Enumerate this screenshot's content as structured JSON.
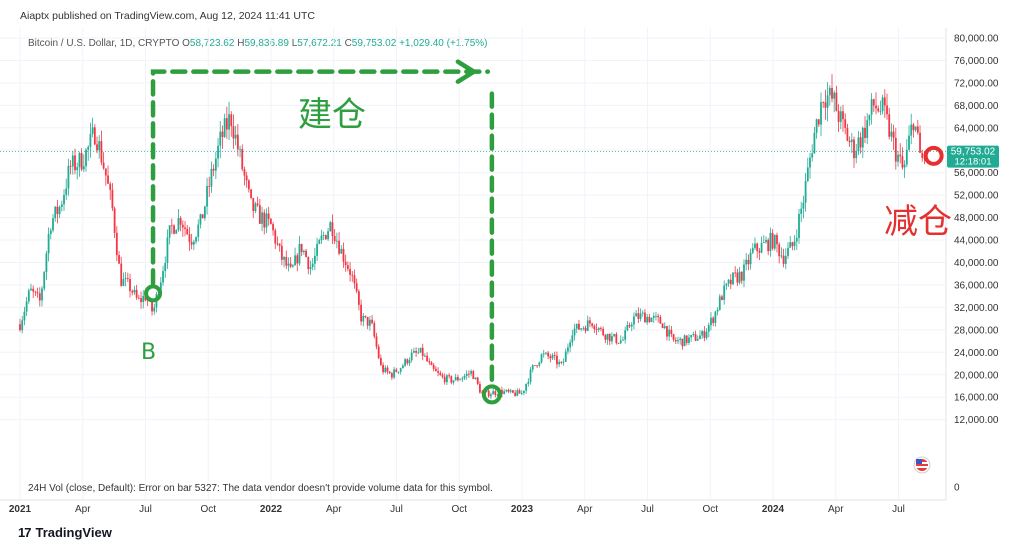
{
  "header": {
    "publisher": "Aiaptx published on TradingView.com, Aug 12, 2024 11:41 UTC"
  },
  "legend": {
    "symbol": "Bitcoin / U.S. Dollar, 1D, CRYPTO",
    "o_label": "O",
    "o_value": "58,723.62",
    "h_label": "H",
    "h_value": "59,836.89",
    "l_label": "L",
    "l_value": "57,672.21",
    "c_label": "C",
    "c_value": "59,753.02",
    "change": "+1,029.40 (+1.75%)"
  },
  "price_badge": {
    "price": "59,753.02",
    "countdown": "12:18:01"
  },
  "volume_note": "24H Vol (close, Default): Error on bar 5327: The data vendor doesn't provide volume data for this symbol.",
  "brand": {
    "logo": "17",
    "name": "TradingView"
  },
  "annotations": {
    "build": "建仓",
    "reduce": "减仓",
    "buy": "B"
  },
  "colors": {
    "up": "#22ab94",
    "down": "#f23645",
    "annotation_green": "#2e9e3e",
    "annotation_red": "#e63030",
    "price_line": "#22ab94",
    "grid": "#f0f3fa"
  },
  "chart_data": {
    "type": "candlestick",
    "title": "Bitcoin / U.S. Dollar, 1D, CRYPTO",
    "ylim": [
      0,
      80000
    ],
    "yticks": [
      "80,000.00",
      "76,000.00",
      "72,000.00",
      "68,000.00",
      "64,000.00",
      "60,000.00",
      "56,000.00",
      "52,000.00",
      "48,000.00",
      "44,000.00",
      "40,000.00",
      "36,000.00",
      "32,000.00",
      "28,000.00",
      "24,000.00",
      "20,000.00",
      "16,000.00",
      "12,000.00",
      "0"
    ],
    "ytick_values": [
      80000,
      76000,
      72000,
      68000,
      64000,
      60000,
      56000,
      52000,
      48000,
      44000,
      40000,
      36000,
      32000,
      28000,
      24000,
      20000,
      16000,
      12000,
      0
    ],
    "xticks": [
      {
        "label": "2021",
        "t": 2021.0,
        "major": true
      },
      {
        "label": "Apr",
        "t": 2021.25
      },
      {
        "label": "Jul",
        "t": 2021.5
      },
      {
        "label": "Oct",
        "t": 2021.75
      },
      {
        "label": "2022",
        "t": 2022.0,
        "major": true
      },
      {
        "label": "Apr",
        "t": 2022.25
      },
      {
        "label": "Jul",
        "t": 2022.5
      },
      {
        "label": "Oct",
        "t": 2022.75
      },
      {
        "label": "2023",
        "t": 2023.0,
        "major": true
      },
      {
        "label": "Apr",
        "t": 2023.25
      },
      {
        "label": "Jul",
        "t": 2023.5
      },
      {
        "label": "Oct",
        "t": 2023.75
      },
      {
        "label": "2024",
        "t": 2024.0,
        "major": true
      },
      {
        "label": "Apr",
        "t": 2024.25
      },
      {
        "label": "Jul",
        "t": 2024.5
      }
    ],
    "xlim": [
      2021.0,
      2024.64
    ],
    "price_series": [
      [
        2021.0,
        29000
      ],
      [
        2021.04,
        35000
      ],
      [
        2021.08,
        33000
      ],
      [
        2021.12,
        47000
      ],
      [
        2021.16,
        50000
      ],
      [
        2021.2,
        57000
      ],
      [
        2021.24,
        58000
      ],
      [
        2021.27,
        60000
      ],
      [
        2021.3,
        63500
      ],
      [
        2021.34,
        56000
      ],
      [
        2021.37,
        49000
      ],
      [
        2021.4,
        37000
      ],
      [
        2021.44,
        35500
      ],
      [
        2021.47,
        33000
      ],
      [
        2021.5,
        34000
      ],
      [
        2021.53,
        31000
      ],
      [
        2021.56,
        37000
      ],
      [
        2021.6,
        46000
      ],
      [
        2021.64,
        48000
      ],
      [
        2021.68,
        44000
      ],
      [
        2021.72,
        47000
      ],
      [
        2021.76,
        55000
      ],
      [
        2021.8,
        62000
      ],
      [
        2021.84,
        66000
      ],
      [
        2021.88,
        58000
      ],
      [
        2021.92,
        50000
      ],
      [
        2021.96,
        48000
      ],
      [
        2022.0,
        46500
      ],
      [
        2022.04,
        41000
      ],
      [
        2022.08,
        38000
      ],
      [
        2022.12,
        43000
      ],
      [
        2022.16,
        39000
      ],
      [
        2022.2,
        44000
      ],
      [
        2022.24,
        47000
      ],
      [
        2022.28,
        42000
      ],
      [
        2022.32,
        38000
      ],
      [
        2022.36,
        30000
      ],
      [
        2022.4,
        29000
      ],
      [
        2022.44,
        21000
      ],
      [
        2022.48,
        20000
      ],
      [
        2022.52,
        21500
      ],
      [
        2022.56,
        23500
      ],
      [
        2022.6,
        24000
      ],
      [
        2022.64,
        21000
      ],
      [
        2022.68,
        19500
      ],
      [
        2022.72,
        19000
      ],
      [
        2022.76,
        19500
      ],
      [
        2022.8,
        20500
      ],
      [
        2022.84,
        16500
      ],
      [
        2022.88,
        16800
      ],
      [
        2022.92,
        17000
      ],
      [
        2022.96,
        16600
      ],
      [
        2023.0,
        16700
      ],
      [
        2023.04,
        21000
      ],
      [
        2023.08,
        23500
      ],
      [
        2023.12,
        23000
      ],
      [
        2023.16,
        21500
      ],
      [
        2023.2,
        28000
      ],
      [
        2023.24,
        28500
      ],
      [
        2023.28,
        29500
      ],
      [
        2023.32,
        27500
      ],
      [
        2023.36,
        26500
      ],
      [
        2023.4,
        26000
      ],
      [
        2023.44,
        30000
      ],
      [
        2023.48,
        30500
      ],
      [
        2023.52,
        30000
      ],
      [
        2023.56,
        29200
      ],
      [
        2023.6,
        26000
      ],
      [
        2023.64,
        26000
      ],
      [
        2023.68,
        26500
      ],
      [
        2023.72,
        27000
      ],
      [
        2023.76,
        30000
      ],
      [
        2023.8,
        34500
      ],
      [
        2023.84,
        37000
      ],
      [
        2023.88,
        38000
      ],
      [
        2023.92,
        42000
      ],
      [
        2023.96,
        43000
      ],
      [
        2024.0,
        44000
      ],
      [
        2024.04,
        41000
      ],
      [
        2024.08,
        43000
      ],
      [
        2024.12,
        51000
      ],
      [
        2024.16,
        62000
      ],
      [
        2024.2,
        70000
      ],
      [
        2024.24,
        69000
      ],
      [
        2024.28,
        64000
      ],
      [
        2024.32,
        60000
      ],
      [
        2024.36,
        63000
      ],
      [
        2024.4,
        68000
      ],
      [
        2024.44,
        67000
      ],
      [
        2024.48,
        61000
      ],
      [
        2024.52,
        56000
      ],
      [
        2024.56,
        66000
      ],
      [
        2024.59,
        58000
      ],
      [
        2024.61,
        59753
      ]
    ]
  }
}
